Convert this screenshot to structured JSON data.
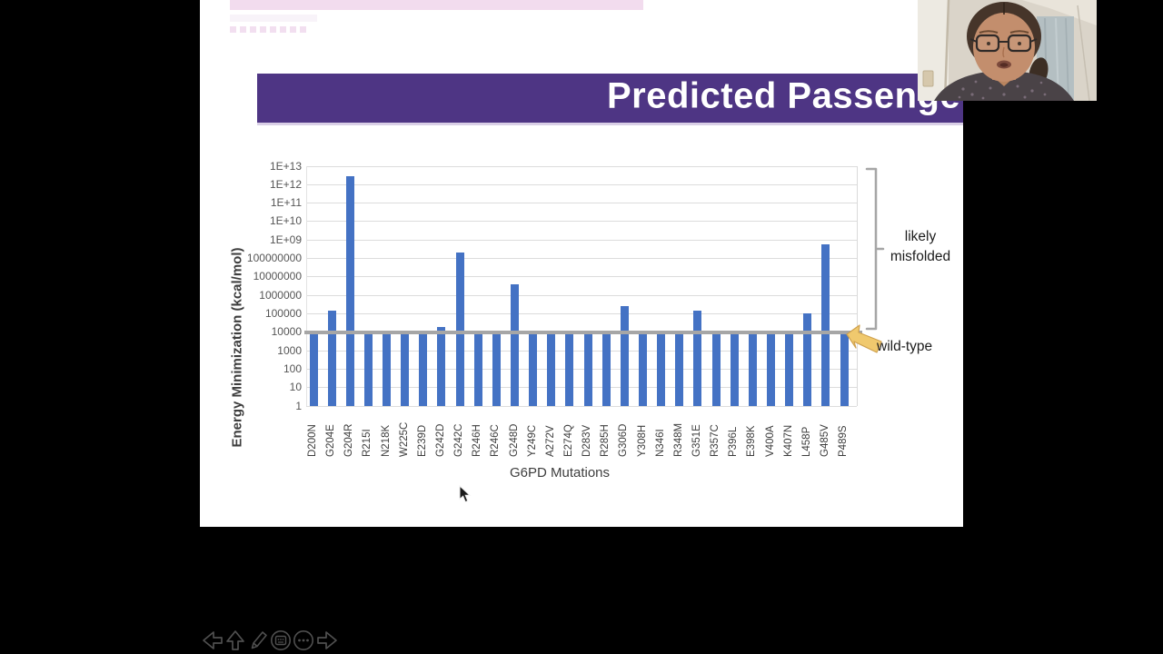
{
  "window": {
    "background": "#000000"
  },
  "slide": {
    "banner": {
      "text": "Predicted Passenge",
      "bg": "#4e3584",
      "text_color": "#ffffff"
    },
    "top_bar_color": "#f2dcee"
  },
  "chart_data": {
    "type": "bar",
    "title": "",
    "xlabel": "G6PD Mutations",
    "ylabel": "Energy Minimization (kcal/mol)",
    "y_scale": "log",
    "ylim": [
      1,
      10000000000000
    ],
    "y_tick_labels": [
      "1E+13",
      "1E+12",
      "1E+11",
      "1E+10",
      "1E+09",
      "100000000",
      "10000000",
      "1000000",
      "100000",
      "10000",
      "1000",
      "100",
      "10",
      "1"
    ],
    "grid": true,
    "legend": "none",
    "bar_color": "#4472c4",
    "categories": [
      "D200N",
      "G204E",
      "G204R",
      "R215I",
      "N218K",
      "W225C",
      "E239D",
      "G242D",
      "G242C",
      "R246H",
      "R246C",
      "G248D",
      "Y249C",
      "A272V",
      "E274Q",
      "D283V",
      "R285H",
      "G306D",
      "Y308H",
      "N346I",
      "R348M",
      "G351E",
      "R357C",
      "P396L",
      "E398K",
      "V400A",
      "K407N",
      "L458P",
      "G485V",
      "P489S"
    ],
    "values": [
      10000,
      150000,
      3000000000000,
      10000,
      10000,
      10000,
      10000,
      20000,
      200000000,
      10000,
      10000,
      4000000,
      10000,
      10000,
      10000,
      10000,
      10000,
      250000,
      10000,
      10000,
      10000,
      150000,
      10000,
      10000,
      10000,
      10000,
      10000,
      100000,
      600000000,
      10000
    ],
    "reference_line": {
      "value": 10000,
      "color": "#a6a6a6",
      "label": "wild-type"
    },
    "annotations": [
      {
        "text": "likely misfolded",
        "target": "region above wild-type line"
      },
      {
        "text": "wild-type",
        "target": "reference line"
      }
    ]
  },
  "labels": {
    "likely_line1": "likely",
    "likely_line2": "misfolded",
    "wildtype": "wild-type"
  },
  "webcam": {
    "description": "presenter webcam video"
  },
  "toolbar": {
    "items": [
      {
        "name": "previous-slide"
      },
      {
        "name": "up"
      },
      {
        "name": "pen"
      },
      {
        "name": "see-all-slides"
      },
      {
        "name": "more-options"
      },
      {
        "name": "next-slide"
      }
    ]
  }
}
